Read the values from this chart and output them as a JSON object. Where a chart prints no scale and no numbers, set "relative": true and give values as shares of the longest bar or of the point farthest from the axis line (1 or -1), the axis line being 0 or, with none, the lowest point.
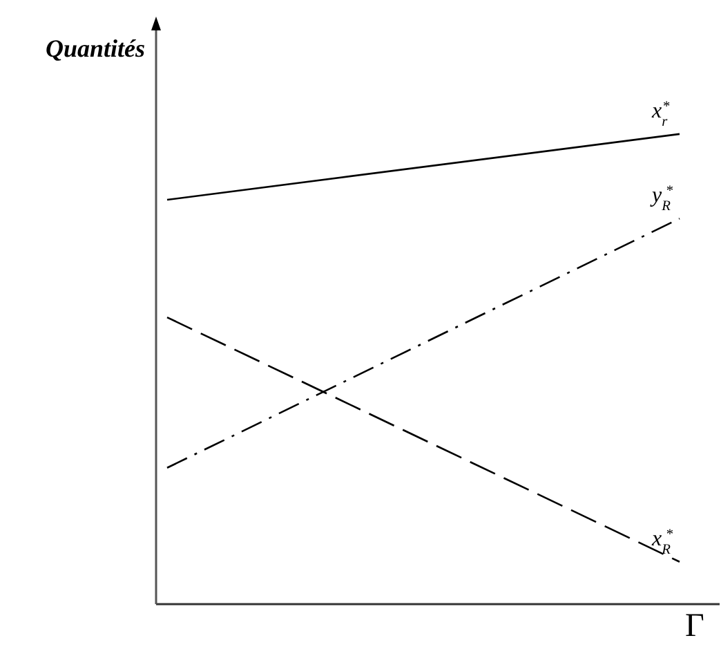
{
  "chart_data": {
    "type": "line",
    "relative": true,
    "xlabel": "Γ",
    "ylabel": "Quantités",
    "categories": [
      null,
      null
    ],
    "marker": "none",
    "series": [
      {
        "name": "x$_{r}$$^{*}$",
        "color": "#000000",
        "line_style": "solid",
        "values": [
          0.86,
          1.0
        ]
      },
      {
        "name": "y$_{R}$$^{*}$",
        "color": "#000000",
        "line_style": "dashdot",
        "values": [
          0.29,
          0.82
        ]
      },
      {
        "name": "x$_{R}$$^{*}$",
        "color": "#000000",
        "line_style": "dashed",
        "values": [
          0.61,
          0.09
        ]
      }
    ]
  }
}
